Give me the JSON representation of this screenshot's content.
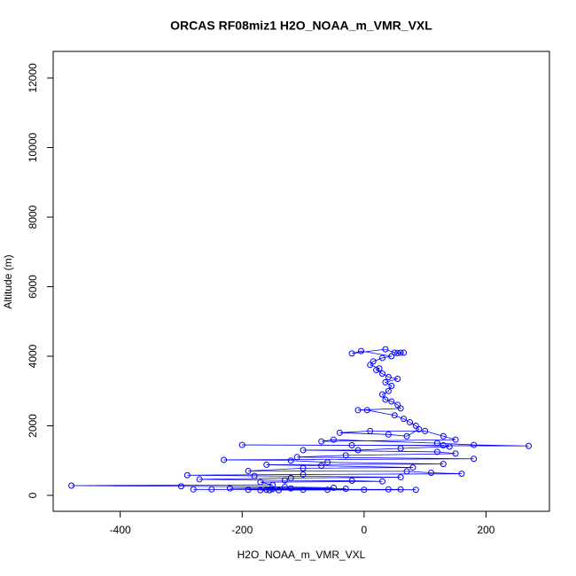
{
  "chart_data": {
    "type": "line",
    "markers": true,
    "title": "ORCAS RF08miz1 H2O_NOAA_m_VMR_VXL",
    "xlabel": "H2O_NOAA_m_VMR_VXL",
    "ylabel": "Altitude (m)",
    "xlim": [
      -510,
      304
    ],
    "ylim": [
      -459,
      12764
    ],
    "xticks": [
      -400,
      -200,
      0,
      200
    ],
    "yticks": [
      0,
      2000,
      4000,
      6000,
      8000,
      10000,
      12000
    ],
    "series": [
      {
        "color": "#0000ff",
        "x": [
          65,
          60,
          55,
          50,
          35,
          -20,
          -5,
          45,
          30,
          15,
          10,
          25,
          20,
          30,
          40,
          55,
          35,
          45,
          40,
          30,
          35,
          45,
          55,
          60,
          -10,
          5,
          50,
          65,
          75,
          85,
          90,
          70,
          40,
          -40,
          10,
          100,
          130,
          150,
          -70,
          -50,
          120,
          180,
          270,
          -200,
          -20,
          130,
          140,
          60,
          -10,
          -100,
          120,
          150,
          -30,
          -110,
          180,
          -230,
          -120,
          -60,
          130,
          -160,
          -70,
          80,
          -100,
          -190,
          70,
          110,
          160,
          -100,
          -290,
          -180,
          60,
          -120,
          -270,
          -130,
          -20,
          30,
          -170,
          -150,
          -480,
          -300,
          -130,
          -50,
          -220,
          -120,
          -30,
          -150,
          -250,
          40,
          -160,
          -190,
          -100,
          85,
          -170,
          -155,
          -140,
          -60,
          0,
          60,
          -280
        ],
        "values": [
          4100,
          4100,
          4090,
          4100,
          4200,
          4080,
          4150,
          4000,
          3950,
          3850,
          3750,
          3650,
          3600,
          3500,
          3400,
          3350,
          3250,
          3150,
          3000,
          2900,
          2750,
          2700,
          2600,
          2500,
          2450,
          2450,
          2300,
          2200,
          2100,
          2000,
          1900,
          1700,
          1750,
          1800,
          1850,
          1850,
          1700,
          1600,
          1550,
          1600,
          1500,
          1450,
          1420,
          1450,
          1440,
          1440,
          1400,
          1350,
          1300,
          1300,
          1250,
          1200,
          1150,
          1100,
          1050,
          1020,
          1000,
          950,
          900,
          880,
          850,
          800,
          780,
          700,
          690,
          650,
          620,
          600,
          580,
          560,
          520,
          500,
          460,
          430,
          420,
          400,
          380,
          300,
          280,
          260,
          240,
          220,
          200,
          200,
          190,
          180,
          170,
          170,
          160,
          160,
          160,
          160,
          150,
          150,
          150,
          160,
          160,
          170,
          170
        ]
      }
    ]
  }
}
